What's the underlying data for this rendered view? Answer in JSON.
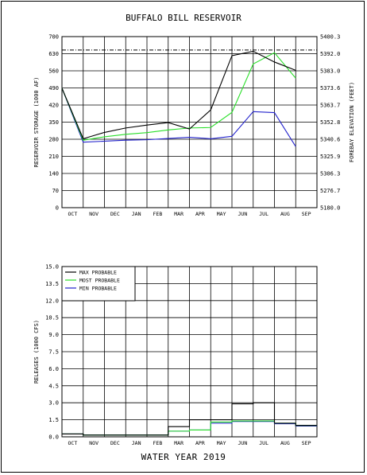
{
  "title": "BUFFALO BILL RESERVOIR",
  "footer": "WATER YEAR 2019",
  "colors": {
    "max": "#000000",
    "most": "#2adf2a",
    "min": "#2222cc",
    "full_pool": "#000000"
  },
  "chart_data": [
    {
      "type": "line",
      "ylabel": "RESERVOIR STORAGE (1000 AF)",
      "ylabel_right": "FOREBAY ELEVATION (FEET)",
      "categories": [
        "OCT",
        "NOV",
        "DEC",
        "JAN",
        "FEB",
        "MAR",
        "APR",
        "MAY",
        "JUN",
        "JUL",
        "AUG",
        "SEP"
      ],
      "ylim": [
        0,
        700
      ],
      "yticks": [
        "0",
        "70",
        "140",
        "210",
        "280",
        "350",
        "420",
        "490",
        "560",
        "630",
        "700"
      ],
      "right_ticks": [
        "5180.0",
        "5276.7",
        "5306.3",
        "5325.9",
        "5340.6",
        "5352.8",
        "5363.7",
        "5373.6",
        "5383.0",
        "5392.0",
        "5400.3"
      ],
      "full_pool": 645,
      "grid": true,
      "series": [
        {
          "name": "MAX PROBABLE",
          "x": [
            0,
            1,
            2,
            3,
            4,
            5,
            6,
            7,
            8,
            9,
            10,
            11
          ],
          "values": [
            489,
            282,
            308,
            326,
            338,
            348,
            322,
            400,
            622,
            640,
            596,
            562
          ]
        },
        {
          "name": "MOST PROBABLE",
          "x": [
            0,
            1,
            2,
            3,
            4,
            5,
            6,
            7,
            8,
            9,
            10,
            11
          ],
          "values": [
            489,
            276,
            290,
            300,
            307,
            318,
            326,
            328,
            390,
            588,
            634,
            530
          ]
        },
        {
          "name": "MIN PROBABLE",
          "x": [
            0,
            1,
            2,
            3,
            4,
            5,
            6,
            7,
            8,
            9,
            10,
            11
          ],
          "values": [
            489,
            268,
            272,
            276,
            278,
            283,
            288,
            282,
            292,
            393,
            389,
            250
          ]
        }
      ]
    },
    {
      "type": "line",
      "step": true,
      "ylabel": "RELEASES (1000 CFS)",
      "categories": [
        "OCT",
        "NOV",
        "DEC",
        "JAN",
        "FEB",
        "MAR",
        "APR",
        "MAY",
        "JUN",
        "JUL",
        "AUG",
        "SEP"
      ],
      "ylim": [
        0,
        15
      ],
      "yticks": [
        "0.0",
        "1.5",
        "3.0",
        "4.5",
        "6.0",
        "7.5",
        "9.0",
        "10.5",
        "12.0",
        "13.5",
        "15.0"
      ],
      "grid": true,
      "legend_position": "top-left",
      "series": [
        {
          "name": "MAX PROBABLE",
          "values": [
            0.25,
            0.15,
            0.15,
            0.15,
            0.15,
            0.9,
            1.5,
            1.5,
            2.9,
            3.0,
            1.2,
            1.0
          ]
        },
        {
          "name": "MOST PROBABLE",
          "values": [
            0.25,
            0.15,
            0.15,
            0.15,
            0.15,
            0.5,
            0.6,
            1.3,
            1.4,
            1.4,
            1.2,
            1.0
          ]
        },
        {
          "name": "MIN PROBABLE",
          "values": [
            0.25,
            0.15,
            0.15,
            0.15,
            0.15,
            0.5,
            0.6,
            1.2,
            1.35,
            1.35,
            1.15,
            0.95
          ]
        }
      ]
    }
  ]
}
